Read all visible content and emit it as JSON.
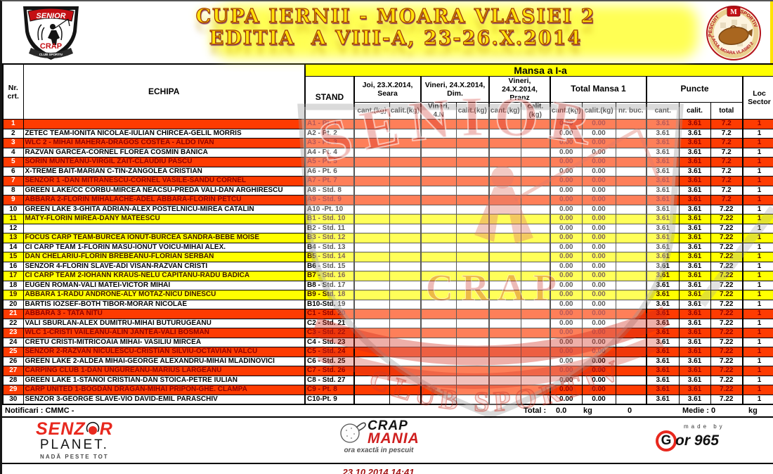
{
  "title": {
    "line1": "CUPA IERNII - MOARA VLASIEI 2",
    "line2": "EDITIA  A VIII-A, 23-26.X.2014"
  },
  "logos": {
    "senior_crap": {
      "banner": "SENIOR",
      "center": "CRAP",
      "ribbon": "CLUB SPORTIV"
    },
    "moara_badge": {
      "arc_left": "PESCUIT",
      "arc_right": "SPORTIV",
      "arc_bottom": "LACUL MOARA VLASIEI 2",
      "crest": "M"
    }
  },
  "watermark": {
    "word1": "SENIOR",
    "word2": "CRAP",
    "word3": "CLUB SPORTIV"
  },
  "table": {
    "headers": {
      "nr": "Nr.\ncrt.",
      "echipa": "ECHIPA",
      "stand": "STAND",
      "mansa": "Mansa a I-a",
      "joi": "Joi, 23.X.2014,\nSeara",
      "vineri_dim": "Vineri, 24.X.2014,\nDim.",
      "vineri_pranz": "Vineri, 24.X.2014,\nPranz",
      "total": "Total Mansa 1",
      "puncte": "Puncte",
      "loc": "Loc\nSector"
    },
    "sub": [
      "cant.(kg)",
      "calit.(kg)",
      "Vineri, 4.N",
      "calit.(kg)",
      "cant.(kg)",
      "calit.(kg)",
      "cant.(kg)",
      "calit.(kg)",
      "nr. buc.",
      "cant.",
      "calit.",
      "total"
    ],
    "rows": [
      {
        "nr": "1",
        "echipa": "",
        "stand": "A1 - Pt. 1",
        "tm_cant": "0.00",
        "tm_calit": "0.00",
        "p_cant": "3.61",
        "p_calit": "3.61",
        "p_total": "7.2",
        "loc": "1",
        "style": "r"
      },
      {
        "nr": "2",
        "echipa": "ZETEC TEAM-IONITA NICOLAE-IULIAN CHIRCEA-GELIL MORRIS",
        "stand": "A2 - Pt. 2",
        "tm_cant": "0.00",
        "tm_calit": "0.00",
        "p_cant": "3.61",
        "p_calit": "3.61",
        "p_total": "7.2",
        "loc": "1",
        "style": "w"
      },
      {
        "nr": "3",
        "echipa": "WLC 2 - MIHAI MAHERA-DRAGOS COSTEA - ALDO IVAN",
        "stand": "A3 - Pt. 3",
        "tm_cant": "0.00",
        "tm_calit": "0.00",
        "p_cant": "3.61",
        "p_calit": "3.61",
        "p_total": "7.2",
        "loc": "1",
        "style": "r"
      },
      {
        "nr": "4",
        "echipa": "RAZVAN GARCEA-CORNEL FLOREA COSMIN BANICA",
        "stand": "A4 - Pt. 4",
        "tm_cant": "0.00",
        "tm_calit": "0.00",
        "p_cant": "3.61",
        "p_calit": "3.61",
        "p_total": "7.2",
        "loc": "1",
        "style": "w"
      },
      {
        "nr": "5",
        "echipa": "SORIN MUNTEANU-VIRGIL ZAIT-CLAUDIU PASCU",
        "stand": "A5 - Pt. 5",
        "tm_cant": "0.00",
        "tm_calit": "0.00",
        "p_cant": "3.61",
        "p_calit": "3.61",
        "p_total": "7.2",
        "loc": "1",
        "style": "r"
      },
      {
        "nr": "6",
        "echipa": "X-TREME BAIT-MARIAN C-TIN-ZANGOLEA CRISTIAN",
        "stand": "A6 - Pt. 6",
        "tm_cant": "0.00",
        "tm_calit": "0.00",
        "p_cant": "3.61",
        "p_calit": "3.61",
        "p_total": "7.2",
        "loc": "1",
        "style": "w"
      },
      {
        "nr": "7",
        "echipa": "SENZOR 1 -DAN MITRANESCU-CORNEL VASILE-SANDU CORNEL",
        "stand": "A7 - Pt. 7",
        "tm_cant": "0.00",
        "tm_calit": "0.00",
        "p_cant": "3.61",
        "p_calit": "3.61",
        "p_total": "7.2",
        "loc": "1",
        "style": "r"
      },
      {
        "nr": "8",
        "echipa": "GREEN LAKE/CC CORBU-MIRCEA NEACSU-PREDA VALI-DAN ARGHIRESCU",
        "stand": "A8 - Std. 8",
        "tm_cant": "0.00",
        "tm_calit": "0.00",
        "p_cant": "3.61",
        "p_calit": "3.61",
        "p_total": "7.2",
        "loc": "1",
        "style": "w"
      },
      {
        "nr": "9",
        "echipa": "ABBARA 2-FLORIN MIHALACHE-ADEL ABBARA-FLORIN PETCU",
        "stand": "A9 - Std. 9",
        "tm_cant": "0.00",
        "tm_calit": "0.00",
        "p_cant": "3.61",
        "p_calit": "3.61",
        "p_total": "7.2",
        "loc": "1",
        "style": "r"
      },
      {
        "nr": "10",
        "echipa": "GREEN LAKE 3-GHITA ADRIAN-ALEX POSTELNICU-MIREA CATALIN",
        "stand": "A10 -Pt. 10",
        "tm_cant": "0.00",
        "tm_calit": "0.00",
        "p_cant": "3.61",
        "p_calit": "3.61",
        "p_total": "7.22",
        "loc": "1",
        "style": "w"
      },
      {
        "nr": "11",
        "echipa": "MATY-FLORIN MIREA-DANY MATEESCU",
        "stand": "B1 - Std. 10",
        "tm_cant": "0.00",
        "tm_calit": "0.00",
        "p_cant": "3.61",
        "p_calit": "3.61",
        "p_total": "7.22",
        "loc": "1",
        "style": "y"
      },
      {
        "nr": "12",
        "echipa": "",
        "stand": "B2 - Std. 11",
        "tm_cant": "0.00",
        "tm_calit": "0.00",
        "p_cant": "3.61",
        "p_calit": "3.61",
        "p_total": "7.22",
        "loc": "1",
        "style": "w"
      },
      {
        "nr": "13",
        "echipa": "FOCUS CARP TEAM-BURCEA IONUT-BURCEA SANDRA-BEBE MOISE",
        "stand": "B3 - Std. 12",
        "tm_cant": "0.00",
        "tm_calit": "0.00",
        "p_cant": "3.61",
        "p_calit": "3.61",
        "p_total": "7.22",
        "loc": "1",
        "style": "y"
      },
      {
        "nr": "14",
        "echipa": "CI CARP TEAM 1-FLORIN MASU-IONUT VOICU-MIHAI ALEX.",
        "stand": "B4 - Std. 13",
        "tm_cant": "0.00",
        "tm_calit": "0.00",
        "p_cant": "3.61",
        "p_calit": "3.61",
        "p_total": "7.22",
        "loc": "1",
        "style": "w"
      },
      {
        "nr": "15",
        "echipa": "DAN CHELARIU-FLORIN BREBEANU-FLORIAN SERBAN",
        "stand": "B5 - Std. 14",
        "tm_cant": "0.00",
        "tm_calit": "0.00",
        "p_cant": "3.61",
        "p_calit": "3.61",
        "p_total": "7.22",
        "loc": "1",
        "style": "y"
      },
      {
        "nr": "16",
        "echipa": "SENZOR 4-FLORIN SLAVE-ADI VISAN-RAZVAN CRISTI",
        "stand": "B6 - Std. 15",
        "tm_cant": "0.00",
        "tm_calit": "0.00",
        "p_cant": "3.61",
        "p_calit": "3.61",
        "p_total": "7.22",
        "loc": "1",
        "style": "w"
      },
      {
        "nr": "17",
        "echipa": "CI CARP TEAM 2-IOHANN KRAUS-NELU CAPITANU-RADU BADICA",
        "stand": "B7 - Std. 16",
        "tm_cant": "0.00",
        "tm_calit": "0.00",
        "p_cant": "3.61",
        "p_calit": "3.61",
        "p_total": "7.22",
        "loc": "1",
        "style": "y"
      },
      {
        "nr": "18",
        "echipa": "EUGEN ROMAN-VALI MATEI-VICTOR MIHAI",
        "stand": "B8 - Std. 17",
        "tm_cant": "0.00",
        "tm_calit": "0.00",
        "p_cant": "3.61",
        "p_calit": "3.61",
        "p_total": "7.22",
        "loc": "1",
        "style": "w"
      },
      {
        "nr": "19",
        "echipa": "ABBARA 1-RADU ANDRONE-ALY MOTAZ-NICU DINESCU",
        "stand": "B9 - Std. 18",
        "tm_cant": "0.00",
        "tm_calit": "0.00",
        "p_cant": "3.61",
        "p_calit": "3.61",
        "p_total": "7.22",
        "loc": "1",
        "style": "y"
      },
      {
        "nr": "20",
        "echipa": "BARTIS IOZSEF-BOTH TIBOR-MORAR NICOLAE",
        "stand": "B10-Std. 19",
        "tm_cant": "0.00",
        "tm_calit": "0.00",
        "p_cant": "3.61",
        "p_calit": "3.61",
        "p_total": "7.22",
        "loc": "1",
        "style": "w"
      },
      {
        "nr": "21",
        "echipa": "ABBARA 3 - TATA NITU",
        "stand": "C1 - Std. 20",
        "tm_cant": "0.00",
        "tm_calit": "0.00",
        "p_cant": "3.61",
        "p_calit": "3.61",
        "p_total": "7.22",
        "loc": "1",
        "style": "r"
      },
      {
        "nr": "22",
        "echipa": "VALI SBURLAN-ALEX DUMITRU-MIHAI BUTURUGEANU",
        "stand": "C2 - Std. 21",
        "tm_cant": "0.00",
        "tm_calit": "0.00",
        "p_cant": "3.61",
        "p_calit": "3.61",
        "p_total": "7.22",
        "loc": "1",
        "style": "w"
      },
      {
        "nr": "23",
        "echipa": "WLC 1-CRISTI VAILEANU-ALIN JANTEA-VALI BOSMAN",
        "stand": "C3 - Std. 22",
        "tm_cant": "0.00",
        "tm_calit": "0.00",
        "p_cant": "3.61",
        "p_calit": "3.61",
        "p_total": "7.22",
        "loc": "1",
        "style": "r"
      },
      {
        "nr": "24",
        "echipa": "CRETU CRISTI-MITRICOAIA MIHAI- VASILIU MIRCEA",
        "stand": "C4 - Std. 23",
        "tm_cant": "0.00",
        "tm_calit": "0.00",
        "p_cant": "3.61",
        "p_calit": "3.61",
        "p_total": "7.22",
        "loc": "1",
        "style": "w"
      },
      {
        "nr": "25",
        "echipa": "SENZOR 2-RAZVAN NICULESCU-CRISTIAN SILVIU-OCTAVIAN VALCU",
        "stand": "C5 - Std. 24",
        "tm_cant": "0.00",
        "tm_calit": "0.00",
        "p_cant": "3.61",
        "p_calit": "3.61",
        "p_total": "7.22",
        "loc": "1",
        "style": "r"
      },
      {
        "nr": "26",
        "echipa": "GREEN LAKE 2-ALDEA MIHAI-GEORGE ALEXANDRU-MIHAI MLADINOVICI",
        "stand": "C6 - Std. 25",
        "tm_cant": "0.00",
        "tm_calit": "0.00",
        "p_cant": "3.61",
        "p_calit": "3.61",
        "p_total": "7.22",
        "loc": "1",
        "style": "w"
      },
      {
        "nr": "27",
        "echipa": "CARPING CLUB 1-DAN UNGUREANU-MARIUS LARGEANU",
        "stand": "C7 - Std. 26",
        "tm_cant": "0.00",
        "tm_calit": "0.00",
        "p_cant": "3.61",
        "p_calit": "3.61",
        "p_total": "7.22",
        "loc": "1",
        "style": "r"
      },
      {
        "nr": "28",
        "echipa": "GREEN LAKE 1-STANOI CRISTIAN-DAN STOICA-PETRE IULIAN",
        "stand": "C8 - Std. 27",
        "tm_cant": "0.00",
        "tm_calit": "0.00",
        "p_cant": "3.61",
        "p_calit": "3.61",
        "p_total": "7.22",
        "loc": "1",
        "style": "w"
      },
      {
        "nr": "29",
        "echipa": "CARP UNITED 1-BOGDAN DRAGAN-MIHAI PRIPON-GHE. CLAMPA",
        "stand": "C9 - Pt. 8",
        "tm_cant": "0.00",
        "tm_calit": "0.00",
        "p_cant": "3.61",
        "p_calit": "3.61",
        "p_total": "7.22",
        "loc": "1",
        "style": "r"
      },
      {
        "nr": "30",
        "echipa": "SENZOR 3-GEORGE SLAVE-VIO DAVID-EMIL PARASCHIV",
        "stand": "C10-Pt. 9",
        "tm_cant": "0.00",
        "tm_calit": "0.00",
        "p_cant": "3.61",
        "p_calit": "3.61",
        "p_total": "7.22",
        "loc": "1",
        "style": "w"
      }
    ]
  },
  "totals": {
    "notificari": "Notificari : CMMC -",
    "total_label": "Total :",
    "total_value": "0.0",
    "unit1": "kg",
    "pieces": "0",
    "medie_label": "Medie :",
    "medie_value": "0",
    "unit2": "kg"
  },
  "footer": {
    "senzor": {
      "part1": "SENZ",
      "part2": "R",
      "line2": "PLANET.",
      "tagline": "NADĂ PESTE TOT"
    },
    "crapmania": {
      "line1": "CRAP",
      "line2": "MANIA",
      "tagline": "ora exactă in pescuit"
    },
    "gor": {
      "madeby": "made by",
      "g": "G",
      "rest": "or 965"
    },
    "timestamp": "23.10.2014 14:41"
  },
  "colors": {
    "red_row": "#fe3b01",
    "yellow_row": "#ffff00",
    "red_row_text": "#8f0000",
    "header_yellow": "#ffff00",
    "title_yellow": "#ffe20a",
    "timestamp_red": "#a31515"
  }
}
